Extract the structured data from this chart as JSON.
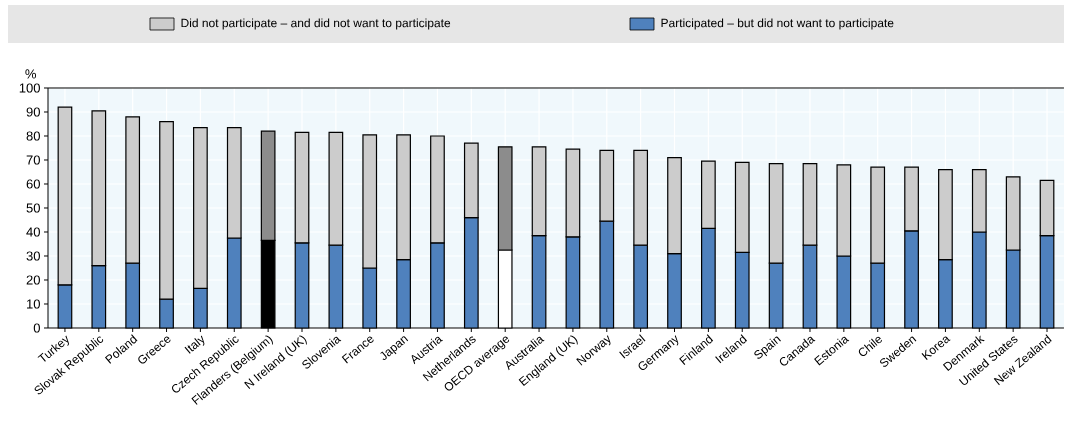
{
  "chart_data": {
    "type": "bar",
    "stacked": true,
    "ylabel": "%",
    "categories": [
      "Turkey",
      "Slovak Republic",
      "Poland",
      "Greece",
      "Italy",
      "Czech Republic",
      "Flanders (Belgium)",
      "N Ireland (UK)",
      "Slovenia",
      "France",
      "Japan",
      "Austria",
      "Netherlands",
      "OECD average",
      "Australia",
      "England (UK)",
      "Norway",
      "Israel",
      "Germany",
      "Finland",
      "Ireland",
      "Spain",
      "Canada",
      "Estonia",
      "Chile",
      "Sweden",
      "Korea",
      "Denmark",
      "United States",
      "New Zealand"
    ],
    "series": [
      {
        "name": "Participated – but did not want to participate",
        "color": "#4f81bd",
        "colors": [
          "#4f81bd",
          "#4f81bd",
          "#4f81bd",
          "#4f81bd",
          "#4f81bd",
          "#4f81bd",
          "#000000",
          "#4f81bd",
          "#4f81bd",
          "#4f81bd",
          "#4f81bd",
          "#4f81bd",
          "#4f81bd",
          "#ffffff",
          "#4f81bd",
          "#4f81bd",
          "#4f81bd",
          "#4f81bd",
          "#4f81bd",
          "#4f81bd",
          "#4f81bd",
          "#4f81bd",
          "#4f81bd",
          "#4f81bd",
          "#4f81bd",
          "#4f81bd",
          "#4f81bd",
          "#4f81bd",
          "#4f81bd",
          "#4f81bd"
        ],
        "values": [
          18,
          26,
          27,
          12,
          16.5,
          37.5,
          36.5,
          35.5,
          34.5,
          25,
          28.5,
          35.5,
          46,
          32.5,
          38.5,
          38,
          44.5,
          34.5,
          31,
          41.5,
          31.5,
          27,
          34.5,
          30,
          27,
          40.5,
          28.5,
          40,
          32.5,
          38.5
        ]
      },
      {
        "name": "Did not participate – and did not want to participate",
        "color": "#cccccc",
        "colors": [
          "#cccccc",
          "#cccccc",
          "#cccccc",
          "#cccccc",
          "#cccccc",
          "#cccccc",
          "#8c8c8c",
          "#cccccc",
          "#cccccc",
          "#cccccc",
          "#cccccc",
          "#cccccc",
          "#cccccc",
          "#8c8c8c",
          "#cccccc",
          "#cccccc",
          "#cccccc",
          "#cccccc",
          "#cccccc",
          "#cccccc",
          "#cccccc",
          "#cccccc",
          "#cccccc",
          "#cccccc",
          "#cccccc",
          "#cccccc",
          "#cccccc",
          "#cccccc",
          "#cccccc",
          "#cccccc"
        ],
        "values": [
          74,
          64.5,
          61,
          74,
          67,
          46,
          45.5,
          46,
          47,
          55.5,
          52,
          44.5,
          31,
          43,
          37,
          36.5,
          29.5,
          39.5,
          40,
          28,
          37.5,
          41.5,
          34,
          38,
          40,
          26.5,
          37.5,
          26,
          30.5,
          23
        ]
      }
    ],
    "ylim": [
      0,
      100
    ],
    "yticks": [
      0,
      10,
      20,
      30,
      40,
      50,
      60,
      70,
      80,
      90,
      100
    ],
    "grid": true,
    "legend": "top"
  }
}
